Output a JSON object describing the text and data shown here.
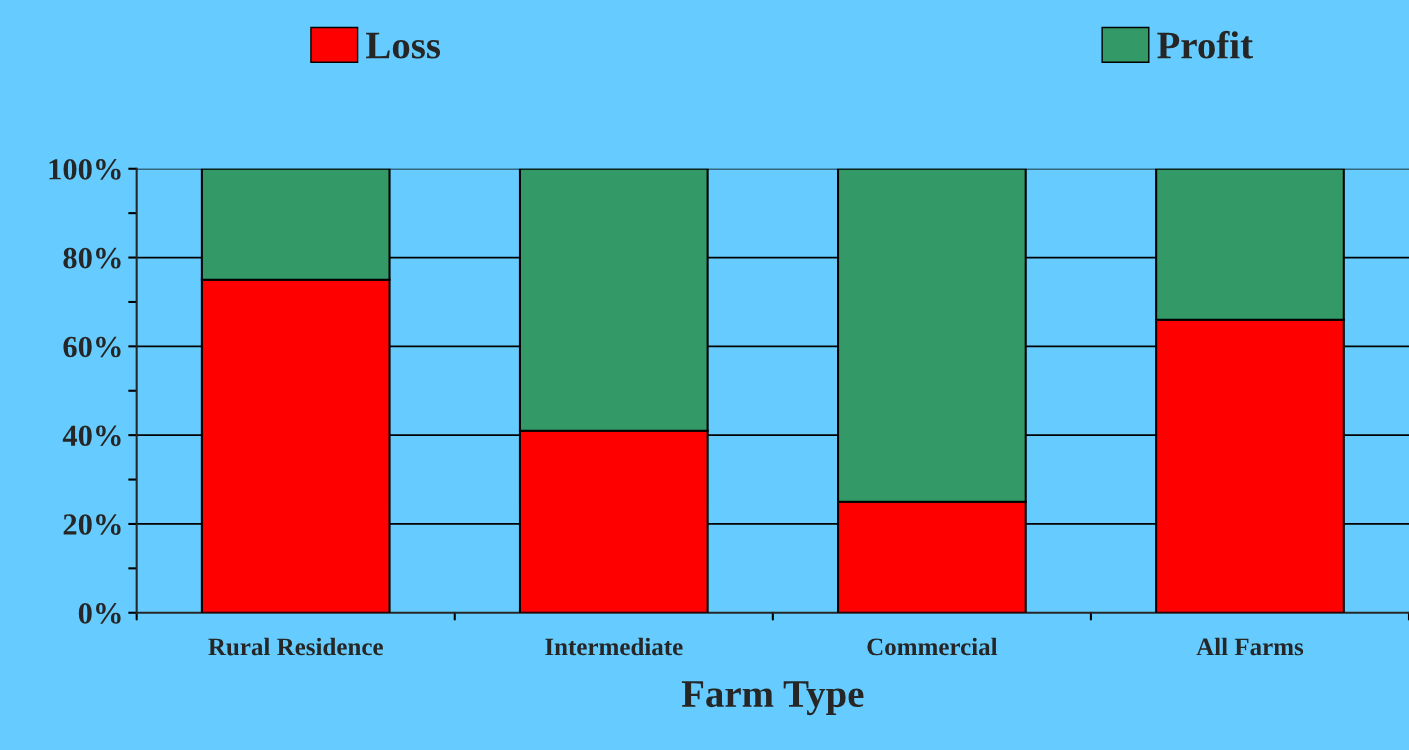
{
  "chart_data": {
    "type": "bar",
    "xlabel": "Farm Type",
    "categories": [
      "Rural Residence",
      "Intermediate",
      "Commercial",
      "All Farms"
    ],
    "series": [
      {
        "name": "Loss",
        "color": "#ff0000",
        "values": [
          75,
          41,
          25,
          66
        ]
      },
      {
        "name": "Profit",
        "color": "#339966",
        "values": [
          25,
          59,
          75,
          34
        ]
      }
    ],
    "stacked": true,
    "ylim": [
      0,
      100
    ],
    "yticks": [
      {
        "value": 0,
        "label": "0%"
      },
      {
        "value": 10,
        "label": null
      },
      {
        "value": 20,
        "label": "20%"
      },
      {
        "value": 30,
        "label": null
      },
      {
        "value": 40,
        "label": "40%"
      },
      {
        "value": 50,
        "label": null
      },
      {
        "value": 60,
        "label": "60%"
      },
      {
        "value": 70,
        "label": null
      },
      {
        "value": 80,
        "label": "80%"
      },
      {
        "value": 90,
        "label": null
      },
      {
        "value": 100,
        "label": "100%"
      }
    ],
    "grid": "y",
    "legend": "top"
  }
}
